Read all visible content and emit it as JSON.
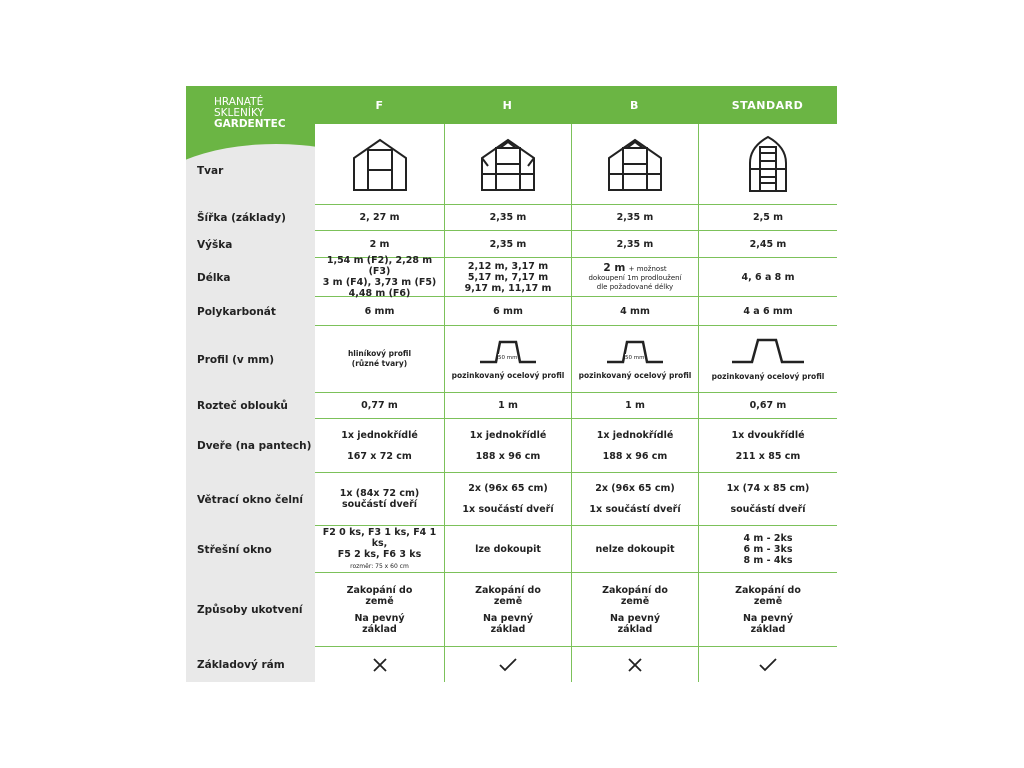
{
  "brand": {
    "line1": "HRANATÉ",
    "line2": "SKLENÍKY",
    "line3": "GARDENTEC"
  },
  "columns": [
    "F",
    "H",
    "B",
    "STANDARD"
  ],
  "colors": {
    "green": "#6bb544",
    "label_bg": "#e9e9e9"
  },
  "rows": {
    "tvar": {
      "label": "Tvar",
      "icons": [
        "greenhouse-f-icon",
        "greenhouse-h-icon",
        "greenhouse-b-icon",
        "greenhouse-standard-icon"
      ]
    },
    "sirka": {
      "label": "Šířka (základy)",
      "values": [
        "2, 27 m",
        "2,35 m",
        "2,35 m",
        "2,5 m"
      ]
    },
    "vyska": {
      "label": "Výška",
      "values": [
        "2 m",
        "2,35 m",
        "2,35 m",
        "2,45 m"
      ]
    },
    "delka": {
      "label": "Délka",
      "f": [
        "1,54 m (F2), 2,28 m (F3)",
        "3 m (F4), 3,73 m (F5)",
        "4,48 m (F6)"
      ],
      "h": [
        "2,12 m, 3,17 m",
        "5,17 m, 7,17 m",
        "9,17 m, 11,17 m"
      ],
      "b_main": "2 m",
      "b_note1": "+ možnost",
      "b_note2": "dokoupení 1m prodloužení",
      "b_note3": "dle požadované délky",
      "standard": "4, 6 a 8 m"
    },
    "poly": {
      "label": "Polykarbonát",
      "values": [
        "6 mm",
        "6 mm",
        "4 mm",
        "4 a 6 mm"
      ]
    },
    "profil": {
      "label": "Profil (v mm)",
      "f1": "hliníkový profil",
      "f2": "(různé tvary)",
      "dim": "50 mm",
      "steel": "pozinkovaný ocelový profil"
    },
    "roztec": {
      "label": "Rozteč oblouků",
      "values": [
        "0,77 m",
        "1 m",
        "1 m",
        "0,67 m"
      ]
    },
    "dvere": {
      "label": "Dveře (na pantech)",
      "type": [
        "1x jednokřídlé",
        "1x jednokřídlé",
        "1x jednokřídlé",
        "1x dvoukřídlé"
      ],
      "size": [
        "167 x 72 cm",
        "188 x 96 cm",
        "188 x 96 cm",
        "211 x 85 cm"
      ]
    },
    "vetraci": {
      "label": "Větrací okno čelní",
      "f1": "1x (84x 72 cm)",
      "f2": "součástí dveří",
      "top": [
        "2x (96x 65 cm)",
        "2x (96x 65 cm)",
        "1x (74 x 85 cm)"
      ],
      "bottom": [
        "1x součástí dveří",
        "1x součástí dveří",
        "součástí dveří"
      ]
    },
    "stresni": {
      "label": "Střešní okno",
      "f1": "F2 0 ks, F3 1 ks, F4 1 ks,",
      "f2": "F5 2 ks, F6 3 ks",
      "f3": "rozměr: 75 x 60 cm",
      "h": "lze dokoupit",
      "b": "nelze dokoupit",
      "s": [
        "4 m - 2ks",
        "6 m - 3ks",
        "8 m - 4ks"
      ]
    },
    "ukotveni": {
      "label": "Způsoby ukotvení",
      "a1": "Zakopání do",
      "a2": "země",
      "b1": "Na pevný",
      "b2": "základ"
    },
    "ram": {
      "label": "Základový rám",
      "values": [
        "no",
        "yes",
        "no",
        "yes"
      ]
    }
  }
}
